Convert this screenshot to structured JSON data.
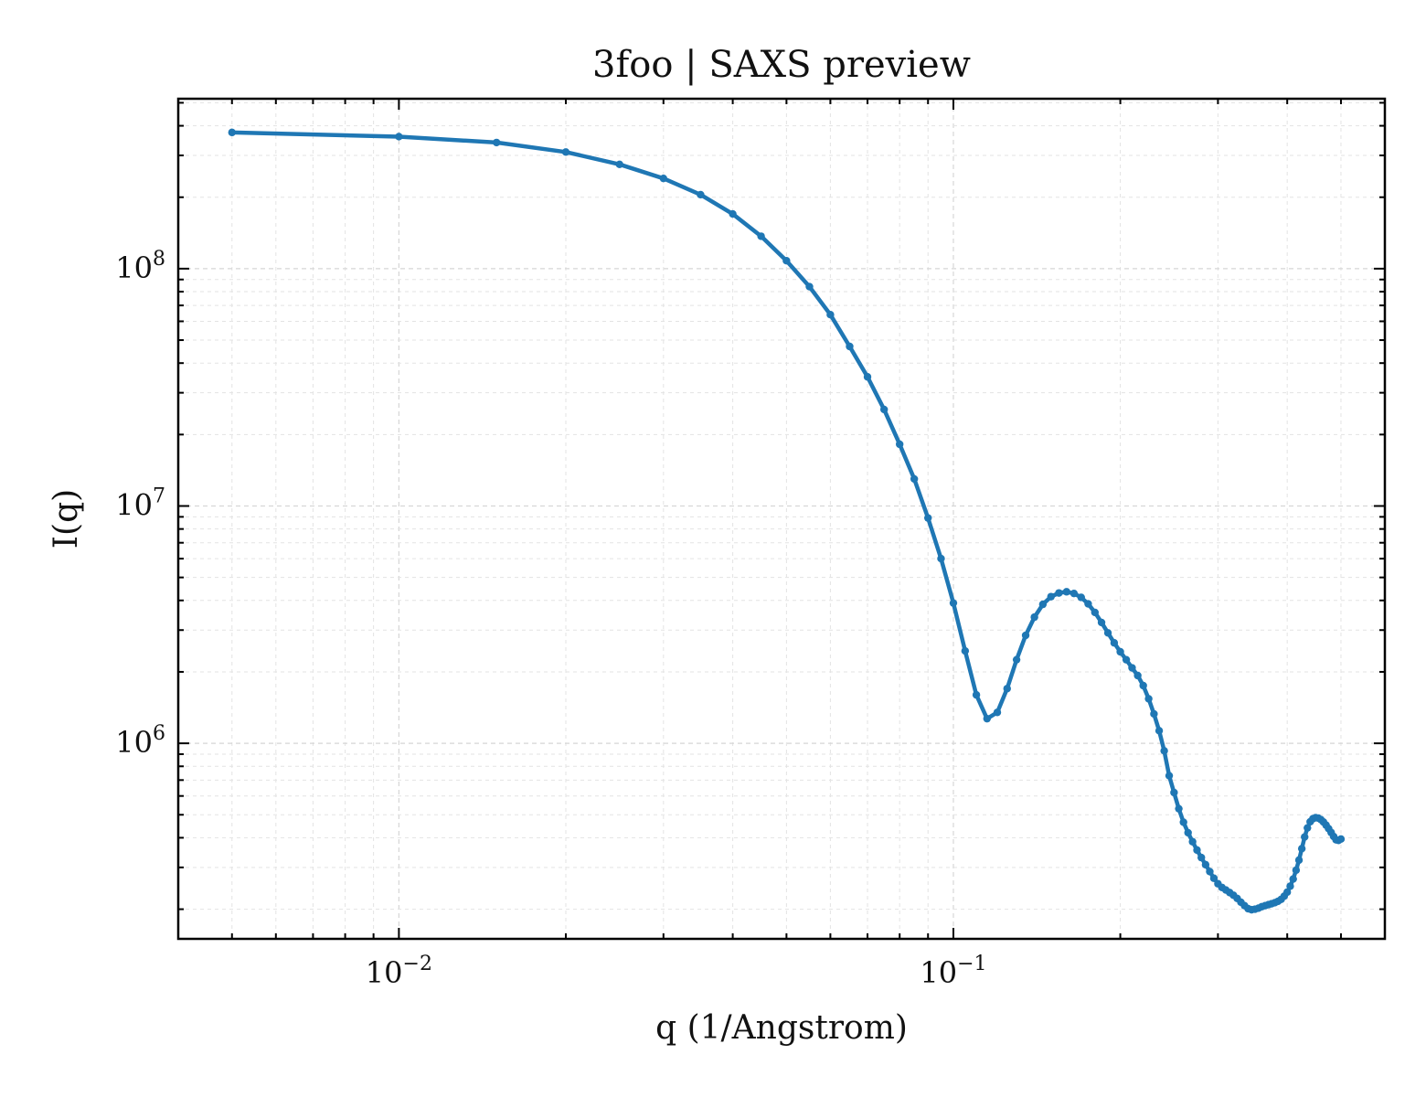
{
  "chart_data": {
    "type": "line",
    "title": "3foo | SAXS preview",
    "xlabel": "q (1/Angstrom)",
    "ylabel": "I(q)",
    "xscale": "log",
    "yscale": "log",
    "xlim": [
      0.004,
      0.6
    ],
    "ylim": [
      150000,
      520000000
    ],
    "grid": true,
    "legend": false,
    "x_ticks": [
      {
        "value": 0.01,
        "base": "10",
        "exp": "−2"
      },
      {
        "value": 0.1,
        "base": "10",
        "exp": "−1"
      }
    ],
    "y_ticks": [
      {
        "value": 1000000,
        "base": "10",
        "exp": "6"
      },
      {
        "value": 10000000,
        "base": "10",
        "exp": "7"
      },
      {
        "value": 100000000,
        "base": "10",
        "exp": "8"
      }
    ],
    "series": [
      {
        "color": "#1f77b4",
        "x": [
          0.005,
          0.01,
          0.015,
          0.02,
          0.025,
          0.03,
          0.035,
          0.04,
          0.045,
          0.05,
          0.055,
          0.06,
          0.065,
          0.07,
          0.075,
          0.08,
          0.085,
          0.09,
          0.095,
          0.1,
          0.105,
          0.11,
          0.115,
          0.12,
          0.125,
          0.13,
          0.135,
          0.14,
          0.145,
          0.15,
          0.155,
          0.16,
          0.165,
          0.17,
          0.175,
          0.18,
          0.185,
          0.19,
          0.195,
          0.2,
          0.205,
          0.21,
          0.215,
          0.22,
          0.225,
          0.23,
          0.235,
          0.24,
          0.245,
          0.25,
          0.255,
          0.26,
          0.265,
          0.27,
          0.275,
          0.28,
          0.285,
          0.29,
          0.295,
          0.3,
          0.305,
          0.31,
          0.315,
          0.32,
          0.325,
          0.33,
          0.335,
          0.34,
          0.345,
          0.35,
          0.355,
          0.36,
          0.365,
          0.37,
          0.375,
          0.38,
          0.385,
          0.39,
          0.395,
          0.4,
          0.405,
          0.41,
          0.415,
          0.42,
          0.425,
          0.43,
          0.435,
          0.44,
          0.445,
          0.45,
          0.455,
          0.46,
          0.465,
          0.47,
          0.475,
          0.48,
          0.485,
          0.49,
          0.495,
          0.5
        ],
        "y": [
          375000000,
          360000000,
          340000000,
          310000000,
          275000000,
          240000000,
          205000000,
          170000000,
          137000000,
          108000000,
          84000000,
          64000000,
          47000000,
          35000000,
          25500000,
          18200000,
          13000000,
          8900000,
          6000000,
          3900000,
          2450000,
          1600000,
          1270000,
          1350000,
          1700000,
          2250000,
          2850000,
          3400000,
          3850000,
          4150000,
          4300000,
          4350000,
          4280000,
          4120000,
          3870000,
          3560000,
          3230000,
          2920000,
          2650000,
          2430000,
          2250000,
          2080000,
          1930000,
          1750000,
          1540000,
          1330000,
          1130000,
          930000,
          730000,
          620000,
          530000,
          465000,
          420000,
          385000,
          355000,
          330000,
          308000,
          288000,
          270000,
          256000,
          247000,
          241000,
          235000,
          229000,
          222000,
          214000,
          207000,
          201000,
          199000,
          200000,
          202000,
          205000,
          207000,
          209000,
          211000,
          213000,
          216000,
          220000,
          227000,
          236000,
          250000,
          268000,
          292000,
          322000,
          360000,
          403000,
          440000,
          467000,
          481000,
          486000,
          484000,
          477000,
          466000,
          452000,
          437000,
          421000,
          405000,
          392000,
          390000,
          395000
        ]
      }
    ]
  }
}
